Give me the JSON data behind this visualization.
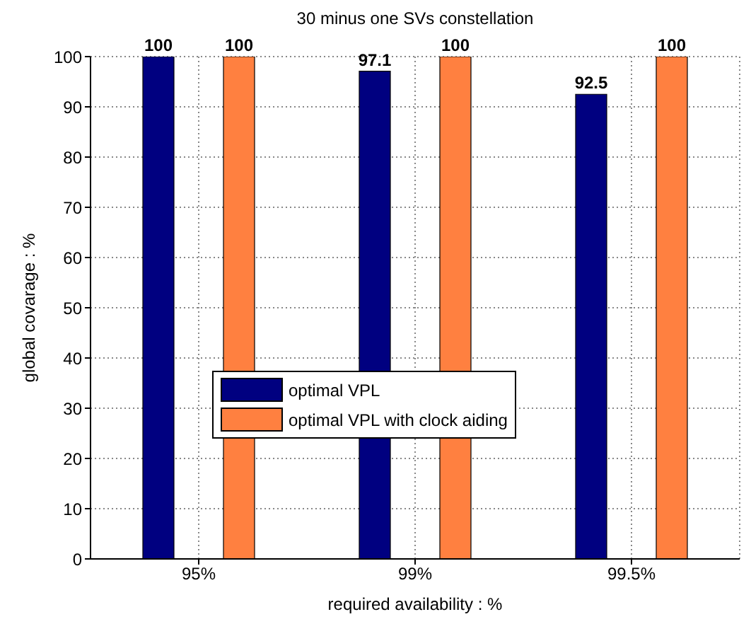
{
  "chart_data": {
    "type": "bar",
    "title": "30 minus one SVs constellation",
    "xlabel": "required availability : %",
    "ylabel": "global covarage : %",
    "categories": [
      "95%",
      "99%",
      "99.5%"
    ],
    "series": [
      {
        "name": "optimal VPL",
        "color": "#000080",
        "values": [
          100,
          97.1,
          92.5
        ]
      },
      {
        "name": "optimal VPL with clock aiding",
        "color": "#ff8040",
        "values": [
          100,
          100,
          100
        ]
      }
    ],
    "ylim": [
      0,
      100
    ],
    "yticks": [
      0,
      10,
      20,
      30,
      40,
      50,
      60,
      70,
      80,
      90,
      100
    ],
    "grid": true,
    "legend": "center",
    "data_labels": true
  }
}
